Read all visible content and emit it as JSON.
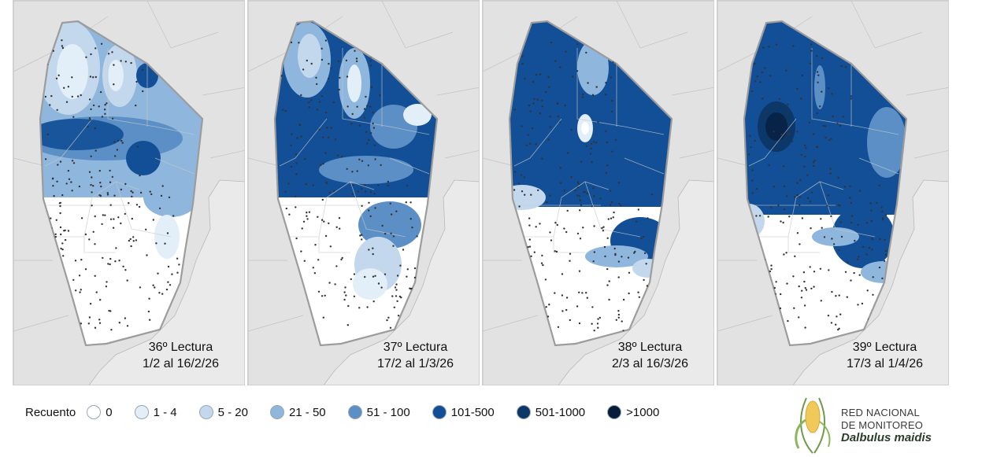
{
  "panels": [
    {
      "reading": "36º Lectura",
      "dates": "1/2 al 16/2/26",
      "level": 1
    },
    {
      "reading": "37º Lectura",
      "dates": "17/2 al 1/3/26",
      "level": 2
    },
    {
      "reading": "38º Lectura",
      "dates": "2/3 al 16/3/26",
      "level": 3
    },
    {
      "reading": "39º Lectura",
      "dates": "17/3 al 1/4/26",
      "level": 4
    }
  ],
  "legend": {
    "title": "Recuento",
    "items": [
      {
        "label": "0",
        "color": "#ffffff"
      },
      {
        "label": "1 - 4",
        "color": "#e2eef8"
      },
      {
        "label": "5 - 20",
        "color": "#c3d8ec"
      },
      {
        "label": "21 - 50",
        "color": "#8fb6dc"
      },
      {
        "label": "51 - 100",
        "color": "#5b8fc6"
      },
      {
        "label": "101-500",
        "color": "#124f96"
      },
      {
        "label": "501-1000",
        "color": "#0b3868"
      },
      {
        "label": ">1000",
        "color": "#061c3a"
      }
    ]
  },
  "logo": {
    "line1": "RED NACIONAL",
    "line2": "DE MONITOREO",
    "line3": "Dalbulus maidis"
  }
}
